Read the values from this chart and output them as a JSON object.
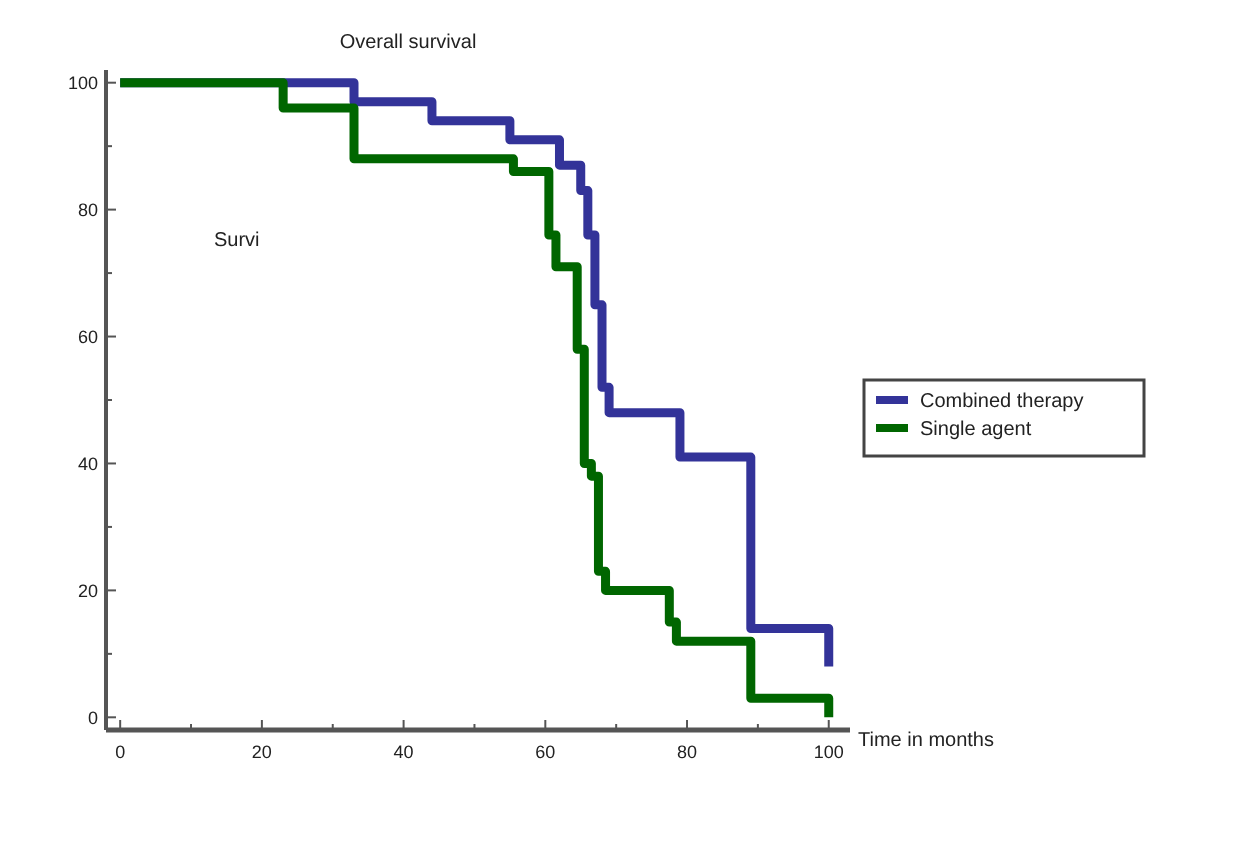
{
  "chart_data": {
    "type": "step",
    "title": "Overall survival",
    "xlabel": "Time in months",
    "annotations": [
      "Survi"
    ],
    "xlim": [
      -2,
      103
    ],
    "ylim": [
      -2,
      102
    ],
    "xticks": [
      0,
      {
        "value": 10,
        "label": null
      },
      20,
      {
        "value": 30,
        "label": null
      },
      40,
      {
        "value": 50,
        "label": null
      },
      60,
      {
        "value": 70,
        "label": null
      },
      80,
      {
        "value": 90,
        "label": null
      },
      100
    ],
    "yticks": [
      0,
      {
        "value": 10,
        "label": null
      },
      20,
      {
        "value": 30,
        "label": null
      },
      40,
      {
        "value": 50,
        "label": null
      },
      60,
      {
        "value": 70,
        "label": null
      },
      80,
      {
        "value": 90,
        "label": null
      },
      100
    ],
    "grid": false,
    "legend": "right",
    "line_style": "solid",
    "series": [
      {
        "name": "Combined therapy",
        "color": "#333399",
        "x": [
          0,
          33,
          44,
          55,
          62,
          65,
          66,
          67,
          68,
          69,
          79,
          89,
          100
        ],
        "values": [
          100,
          97,
          94,
          91,
          87,
          83,
          76,
          65,
          52,
          48,
          41,
          14,
          8
        ]
      },
      {
        "name": "Single agent",
        "color": "#006600",
        "x": [
          0,
          23,
          33,
          55.5,
          60.5,
          61.5,
          64.5,
          65.5,
          66.5,
          67.5,
          68.5,
          77.5,
          78.5,
          89,
          100
        ],
        "values": [
          100,
          96,
          88,
          86,
          76,
          71,
          58,
          40,
          38,
          23,
          20,
          15,
          12,
          3,
          0
        ]
      }
    ]
  }
}
